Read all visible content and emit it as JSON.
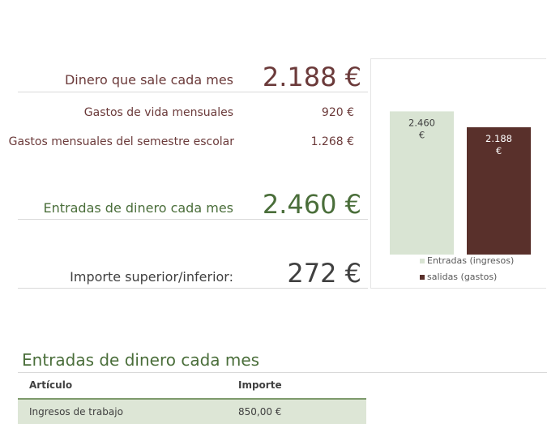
{
  "summary": {
    "money_out_label": "Dinero que sale cada mes",
    "money_out_value": "2.188 €",
    "living_costs_label": "Gastos de vida mensuales",
    "living_costs_value": "920 €",
    "semester_costs_label": "Gastos mensuales del semestre escolar",
    "semester_costs_value": "1.268 €",
    "money_in_label": "Entradas de dinero cada mes",
    "money_in_value": "2.460 €",
    "difference_label": "Importe superior/inferior:",
    "difference_value": "272 €"
  },
  "chart_data": {
    "type": "bar",
    "categories": [
      "Entradas (ingresos)",
      "salidas (gastos)"
    ],
    "values": [
      2460,
      2188
    ],
    "data_labels": [
      [
        "2.460",
        "€"
      ],
      [
        "2.188",
        "€"
      ]
    ],
    "ylim": [
      0,
      2800
    ],
    "legend_position": "bottom",
    "colors": [
      "#d9e4d3",
      "#59302b"
    ]
  },
  "income_table": {
    "title": "Entradas de dinero cada mes",
    "headers": [
      "Artículo",
      "Importe"
    ],
    "rows": [
      {
        "item": "Ingresos de trabajo",
        "amount": "850,00 €"
      }
    ]
  },
  "colors": {
    "expense": "#6b3a3a",
    "income": "#4a6e3a",
    "income_bar": "#d9e4d3",
    "expense_bar": "#59302b"
  }
}
